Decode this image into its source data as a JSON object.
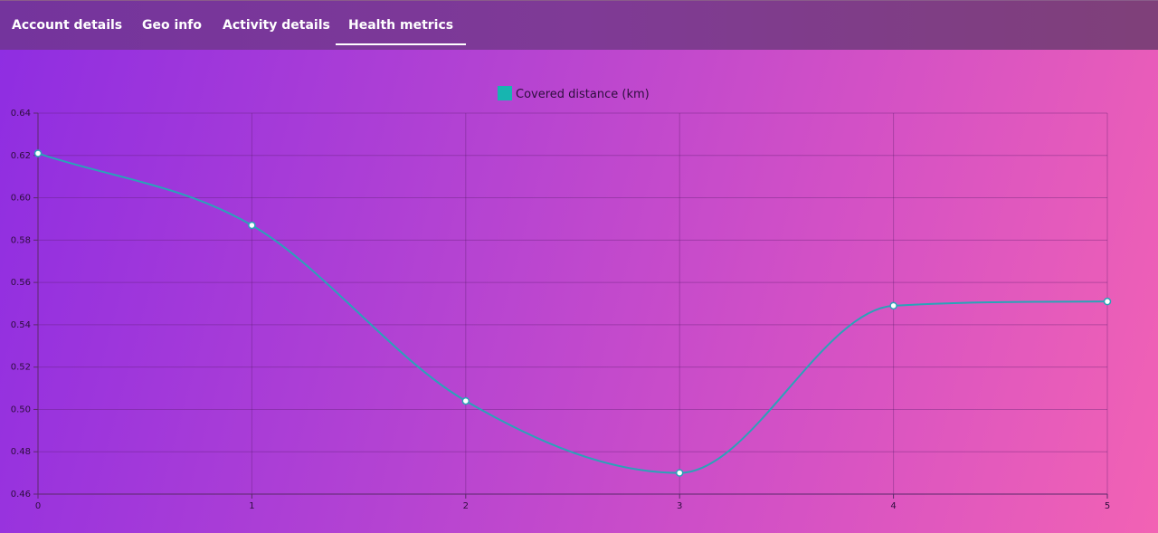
{
  "tabs": [
    {
      "label": "Account details",
      "active": false
    },
    {
      "label": "Geo info",
      "active": false
    },
    {
      "label": "Activity details",
      "active": false
    },
    {
      "label": "Health metrics",
      "active": true
    }
  ],
  "colors": {
    "line": "#2aa3b8",
    "legend_swatch": "#17b5b0",
    "point_fill": "#ffffff"
  },
  "chart_data": {
    "type": "line",
    "x": [
      0,
      1,
      2,
      3,
      4,
      5
    ],
    "series": [
      {
        "name": "Covered distance (km)",
        "values": [
          0.621,
          0.587,
          0.504,
          0.47,
          0.549,
          0.551
        ]
      }
    ],
    "yticks": [
      "0.46",
      "0.48",
      "0.50",
      "0.52",
      "0.54",
      "0.56",
      "0.58",
      "0.60",
      "0.62",
      "0.64"
    ],
    "xticks": [
      "0",
      "1",
      "2",
      "3",
      "4",
      "5"
    ],
    "ylim": [
      0.46,
      0.64
    ],
    "xlim": [
      0,
      5
    ],
    "grid": true,
    "legend": "top-center",
    "smooth": true
  }
}
